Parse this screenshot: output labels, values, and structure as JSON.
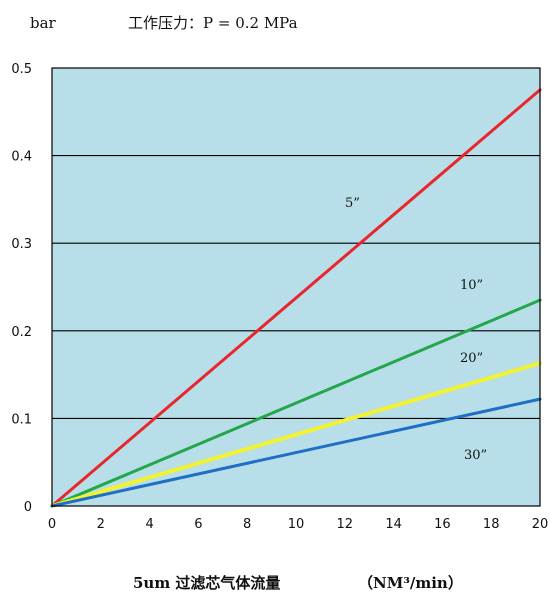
{
  "chart_data": {
    "type": "line",
    "ylabel": "bar",
    "subtitle": "工作压力：P = 0.2 MPa",
    "xlabel": "5um 过滤芯气体流量",
    "xunit": "（NM³/min）",
    "xlim": [
      0,
      20
    ],
    "ylim": [
      0,
      0.5
    ],
    "xticks": [
      "0",
      "2",
      "4",
      "6",
      "8",
      "10",
      "12",
      "14",
      "16",
      "18",
      "20"
    ],
    "yticks": [
      "0",
      "0.1",
      "0.2",
      "0.3",
      "0.4",
      "0.5"
    ],
    "grid": "horizontal",
    "series": [
      {
        "name": "5”",
        "x": [
          0,
          20
        ],
        "y": [
          0,
          0.475
        ],
        "color": "#e8262b"
      },
      {
        "name": "10”",
        "x": [
          0,
          20
        ],
        "y": [
          0,
          0.235
        ],
        "color": "#22a84a"
      },
      {
        "name": "20”",
        "x": [
          0,
          20
        ],
        "y": [
          0,
          0.163
        ],
        "color": "#f2f230"
      },
      {
        "name": "30”",
        "x": [
          0,
          20
        ],
        "y": [
          0,
          0.122
        ],
        "color": "#1f6fc4"
      }
    ],
    "colors": {
      "plot_background": "#b8dfe9",
      "grid": "#000000"
    }
  }
}
